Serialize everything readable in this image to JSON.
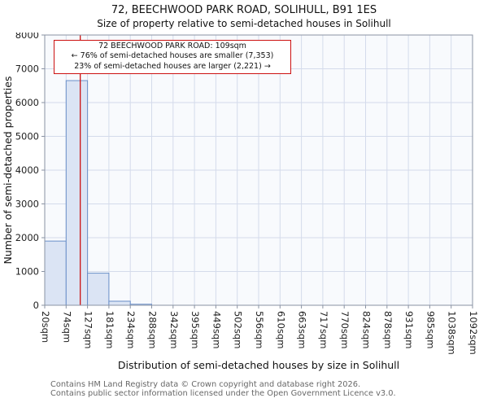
{
  "page": {
    "title": "72, BEECHWOOD PARK ROAD, SOLIHULL, B91 1ES",
    "subtitle": "Size of property relative to semi-detached houses in Solihull"
  },
  "chart_data": {
    "type": "bar",
    "title": "72, BEECHWOOD PARK ROAD, SOLIHULL, B91 1ES",
    "subtitle": "Size of property relative to semi-detached houses in Solihull",
    "xlabel": "Distribution of semi-detached houses by size in Solihull",
    "ylabel": "Number of semi-detached properties",
    "ylim": [
      0,
      8000
    ],
    "y_ticks": [
      0,
      1000,
      2000,
      3000,
      4000,
      5000,
      6000,
      7000,
      8000
    ],
    "x_min": 20,
    "x_max": 1092,
    "x_tick_labels": [
      "20sqm",
      "74sqm",
      "127sqm",
      "181sqm",
      "234sqm",
      "288sqm",
      "342sqm",
      "395sqm",
      "449sqm",
      "502sqm",
      "556sqm",
      "610sqm",
      "663sqm",
      "717sqm",
      "770sqm",
      "824sqm",
      "878sqm",
      "931sqm",
      "985sqm",
      "1038sqm",
      "1092sqm"
    ],
    "bin_values": [
      1900,
      6650,
      950,
      120,
      30,
      0,
      0,
      0,
      0,
      0,
      0,
      0,
      0,
      0,
      0,
      0,
      0,
      0,
      0,
      0
    ],
    "marker": {
      "label": "72 BEECHWOOD PARK ROAD",
      "value_sqm": 109
    },
    "annotation": {
      "line1": "72 BEECHWOOD PARK ROAD: 109sqm",
      "line2": "← 76% of semi-detached houses are smaller (7,353)",
      "line3": "23% of semi-detached houses are larger (2,221) →"
    },
    "colors": {
      "bar_fill": "#dbe4f4",
      "bar_border": "#6a8fc8",
      "grid": "#d4dbeb",
      "plot_bg": "#f8fafd",
      "axis": "#8a93a3",
      "marker": "#cc1111",
      "annotation_border": "#cc1111",
      "tick_text": "#222222"
    },
    "grid": true,
    "legend": false
  },
  "footer": {
    "line1": "Contains HM Land Registry data © Crown copyright and database right 2026.",
    "line2": "Contains public sector information licensed under the Open Government Licence v3.0."
  }
}
